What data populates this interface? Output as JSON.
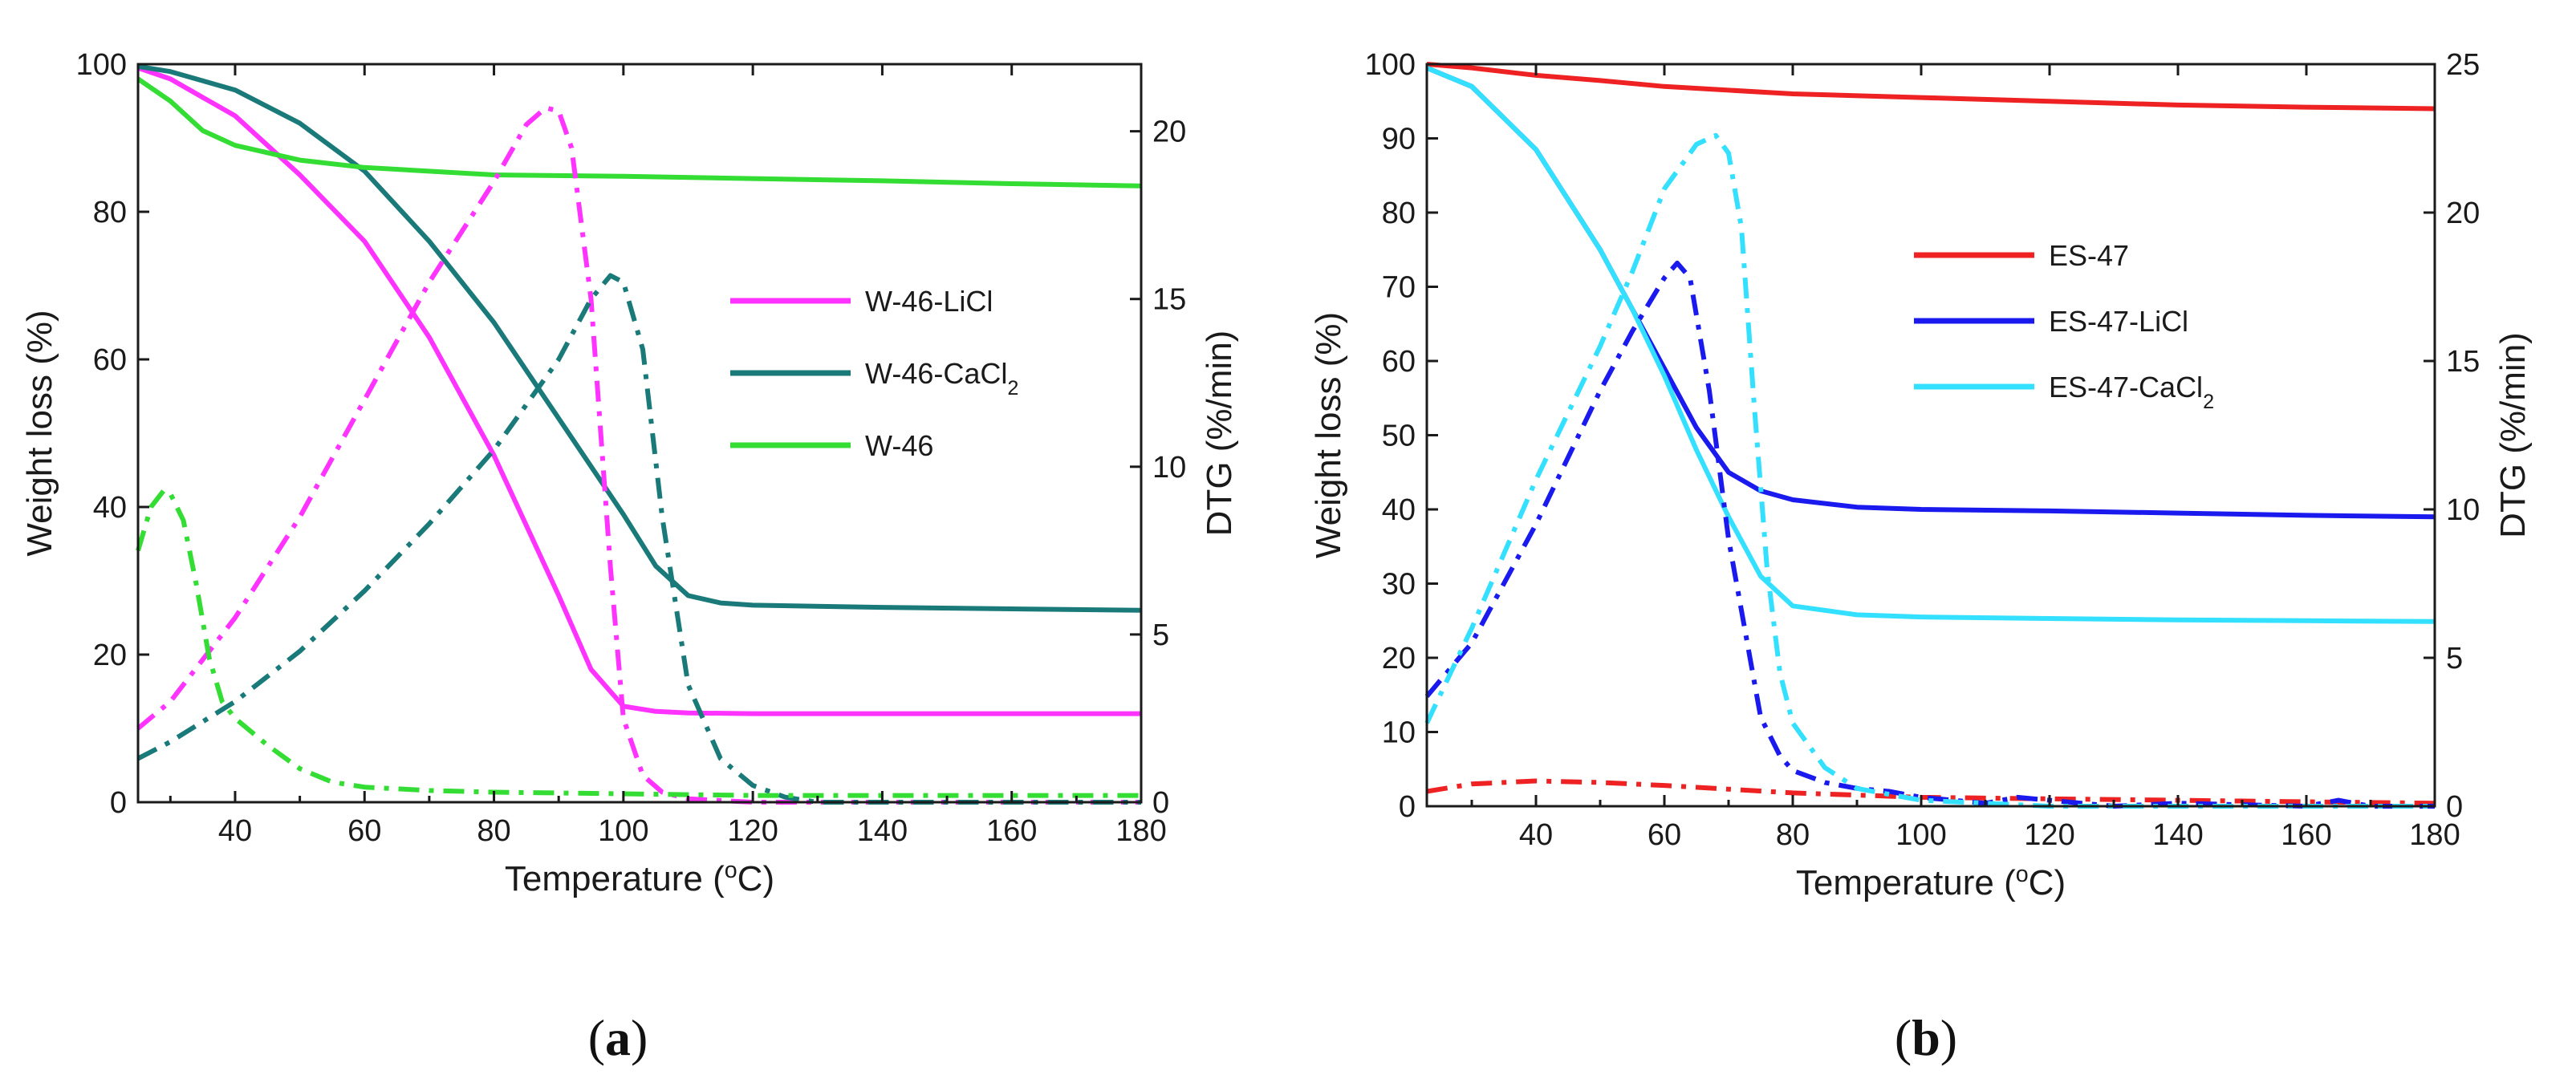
{
  "chart_data": [
    {
      "panel_label": "(a)",
      "type": "line",
      "xlabel": "Temperature (°C)",
      "ylabel": "Weight loss (%)",
      "y2label": "DTG (%/min)",
      "xlim": [
        25,
        180
      ],
      "ylim": [
        0,
        100
      ],
      "y2lim": [
        0,
        22
      ],
      "xticks": [
        40,
        60,
        80,
        100,
        120,
        140,
        160,
        180
      ],
      "yticks": [
        0,
        20,
        40,
        60,
        80,
        100
      ],
      "y2ticks": [
        0,
        5,
        10,
        15,
        20
      ],
      "legend": {
        "placement": "center-right",
        "entries": [
          "W-46-LiCl",
          "W-46-CaCl2",
          "W-46"
        ]
      },
      "series": [
        {
          "name": "W-46-LiCl",
          "color": "#ff33ff",
          "style": "solid",
          "axis": "left",
          "x": [
            25,
            30,
            40,
            50,
            60,
            70,
            80,
            90,
            95,
            100,
            105,
            110,
            120,
            140,
            160,
            180
          ],
          "y": [
            99.5,
            98,
            93,
            85,
            76,
            63,
            47,
            28,
            18,
            13,
            12.3,
            12.1,
            12,
            12,
            12,
            12
          ]
        },
        {
          "name": "W-46-CaCl2",
          "color": "#1a7a7a",
          "style": "solid",
          "axis": "left",
          "x": [
            25,
            30,
            40,
            50,
            60,
            70,
            80,
            90,
            100,
            105,
            110,
            115,
            120,
            140,
            160,
            180
          ],
          "y": [
            99.7,
            99,
            96.5,
            92,
            85.5,
            76,
            65,
            52,
            39,
            32,
            28,
            27,
            26.7,
            26.4,
            26.2,
            26
          ]
        },
        {
          "name": "W-46",
          "color": "#33dd33",
          "style": "solid",
          "axis": "left",
          "x": [
            25,
            30,
            35,
            40,
            50,
            60,
            80,
            100,
            120,
            140,
            160,
            180
          ],
          "y": [
            98,
            95,
            91,
            89,
            87,
            86,
            85,
            84.8,
            84.5,
            84.2,
            83.8,
            83.5
          ]
        },
        {
          "name": "W-46-LiCl DTG",
          "color": "#ff33ff",
          "style": "dashdot",
          "axis": "right",
          "x": [
            25,
            30,
            40,
            50,
            60,
            70,
            80,
            85,
            88,
            90,
            92,
            95,
            98,
            100,
            103,
            106,
            110,
            120,
            140,
            180
          ],
          "y": [
            2.2,
            3,
            5.5,
            8.5,
            12,
            15.5,
            18.5,
            20.2,
            20.7,
            20.6,
            19.5,
            15,
            7,
            2.5,
            0.8,
            0.3,
            0.1,
            0,
            0,
            0
          ]
        },
        {
          "name": "W-46-CaCl2 DTG",
          "color": "#1a7a7a",
          "style": "dashdot",
          "axis": "right",
          "x": [
            25,
            30,
            40,
            50,
            60,
            70,
            80,
            90,
            95,
            98,
            100,
            103,
            106,
            110,
            115,
            120,
            125,
            130,
            180
          ],
          "y": [
            1.3,
            1.8,
            3,
            4.5,
            6.3,
            8.3,
            10.5,
            13.2,
            15,
            15.7,
            15.5,
            13.5,
            8.5,
            3.5,
            1.3,
            0.5,
            0.15,
            0,
            0
          ]
        },
        {
          "name": "W-46 DTG",
          "color": "#33dd33",
          "style": "dashdot",
          "axis": "right",
          "x": [
            25,
            27,
            29,
            30,
            32,
            34,
            36,
            38,
            40,
            45,
            50,
            55,
            60,
            70,
            80,
            100,
            120,
            140,
            160,
            180
          ],
          "y": [
            7.5,
            8.8,
            9.3,
            9.2,
            8.4,
            6.5,
            4.3,
            3,
            2.5,
            1.7,
            1,
            0.6,
            0.45,
            0.35,
            0.3,
            0.25,
            0.2,
            0.2,
            0.2,
            0.2
          ]
        }
      ]
    },
    {
      "panel_label": "(b)",
      "type": "line",
      "xlabel": "Temperature (°C)",
      "ylabel": "Weight loss (%)",
      "y2label": "DTG (%/min)",
      "xlim": [
        23,
        180
      ],
      "ylim": [
        0,
        100
      ],
      "y2lim": [
        0,
        25
      ],
      "xticks": [
        40,
        60,
        80,
        100,
        120,
        140,
        160,
        180
      ],
      "yticks": [
        0,
        10,
        20,
        30,
        40,
        50,
        60,
        70,
        80,
        90,
        100
      ],
      "y2ticks": [
        0,
        5,
        10,
        15,
        20,
        25
      ],
      "legend": {
        "placement": "top-center",
        "entries": [
          "ES-47",
          "ES-47-LiCl",
          "ES-47-CaCl2"
        ]
      },
      "series": [
        {
          "name": "ES-47",
          "color": "#ee2222",
          "style": "solid",
          "axis": "left",
          "x": [
            23,
            30,
            40,
            50,
            60,
            80,
            100,
            120,
            140,
            160,
            180
          ],
          "y": [
            100,
            99.5,
            98.5,
            97.8,
            97,
            96,
            95.5,
            95,
            94.5,
            94.2,
            94
          ]
        },
        {
          "name": "ES-47-LiCl",
          "color": "#1a1aee",
          "style": "solid",
          "axis": "left",
          "x": [
            23,
            30,
            40,
            50,
            55,
            60,
            65,
            70,
            75,
            80,
            90,
            100,
            120,
            140,
            160,
            180
          ],
          "y": [
            99.5,
            97,
            88.5,
            75,
            67,
            59,
            51,
            45,
            42.5,
            41.3,
            40.3,
            40,
            39.8,
            39.5,
            39.2,
            39
          ]
        },
        {
          "name": "ES-47-CaCl2",
          "color": "#33e0ff",
          "style": "solid",
          "axis": "left",
          "x": [
            23,
            30,
            40,
            50,
            55,
            60,
            65,
            70,
            75,
            80,
            90,
            100,
            120,
            140,
            160,
            180
          ],
          "y": [
            99.5,
            97,
            88.5,
            75,
            67,
            58,
            48,
            39,
            31,
            27,
            25.8,
            25.5,
            25.3,
            25.1,
            25,
            24.9
          ]
        },
        {
          "name": "ES-47 DTG",
          "color": "#ee2222",
          "style": "dashdot",
          "axis": "right",
          "x": [
            23,
            30,
            40,
            50,
            60,
            80,
            100,
            120,
            140,
            160,
            180
          ],
          "y": [
            0.5,
            0.75,
            0.85,
            0.8,
            0.7,
            0.45,
            0.3,
            0.25,
            0.2,
            0.15,
            0.1
          ]
        },
        {
          "name": "ES-47-LiCl DTG",
          "color": "#1a1aee",
          "style": "dashdot",
          "axis": "right",
          "x": [
            23,
            30,
            40,
            50,
            55,
            60,
            62,
            64,
            67,
            70,
            75,
            78,
            80,
            85,
            90,
            95,
            100,
            110,
            115,
            120,
            130,
            140,
            160,
            165,
            170,
            180
          ],
          "y": [
            3.7,
            5.5,
            9.5,
            14,
            16,
            17.8,
            18.3,
            17.8,
            14,
            9,
            3,
            1.7,
            1.2,
            0.8,
            0.6,
            0.5,
            0.3,
            0.1,
            0.3,
            0.2,
            0,
            0.1,
            0,
            0.2,
            0,
            0
          ]
        },
        {
          "name": "ES-47-CaCl2 DTG",
          "color": "#33e0ff",
          "style": "dashdot",
          "axis": "right",
          "x": [
            23,
            30,
            40,
            50,
            55,
            60,
            65,
            68,
            70,
            72,
            74,
            76,
            78,
            80,
            85,
            90,
            100,
            120,
            140,
            180
          ],
          "y": [
            2.8,
            6,
            11,
            15.5,
            18,
            20.8,
            22.3,
            22.6,
            22,
            19.5,
            13.5,
            8,
            4.5,
            2.8,
            1.3,
            0.6,
            0.2,
            0,
            0,
            0
          ]
        }
      ]
    }
  ]
}
